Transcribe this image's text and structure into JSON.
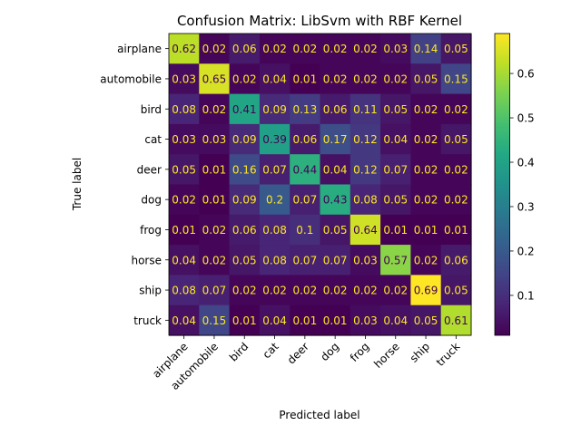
{
  "chart_data": {
    "type": "heatmap",
    "title": "Confusion Matrix: LibSvm with RBF Kernel",
    "xlabel": "Predicted label",
    "ylabel": "True label",
    "x_categories": [
      "airplane",
      "automobile",
      "bird",
      "cat",
      "deer",
      "dog",
      "frog",
      "horse",
      "ship",
      "truck"
    ],
    "y_categories": [
      "airplane",
      "automobile",
      "bird",
      "cat",
      "deer",
      "dog",
      "frog",
      "horse",
      "ship",
      "truck"
    ],
    "values": [
      [
        0.62,
        0.02,
        0.06,
        0.02,
        0.02,
        0.02,
        0.02,
        0.03,
        0.14,
        0.05
      ],
      [
        0.03,
        0.65,
        0.02,
        0.04,
        0.01,
        0.02,
        0.02,
        0.02,
        0.05,
        0.15
      ],
      [
        0.08,
        0.02,
        0.41,
        0.09,
        0.13,
        0.06,
        0.11,
        0.05,
        0.02,
        0.02
      ],
      [
        0.03,
        0.03,
        0.09,
        0.39,
        0.06,
        0.17,
        0.12,
        0.04,
        0.02,
        0.05
      ],
      [
        0.05,
        0.01,
        0.16,
        0.07,
        0.44,
        0.04,
        0.12,
        0.07,
        0.02,
        0.02
      ],
      [
        0.02,
        0.01,
        0.09,
        0.2,
        0.07,
        0.43,
        0.08,
        0.05,
        0.02,
        0.02
      ],
      [
        0.01,
        0.02,
        0.06,
        0.08,
        0.1,
        0.05,
        0.64,
        0.01,
        0.01,
        0.01
      ],
      [
        0.04,
        0.02,
        0.05,
        0.08,
        0.07,
        0.07,
        0.03,
        0.57,
        0.02,
        0.06
      ],
      [
        0.08,
        0.07,
        0.02,
        0.02,
        0.02,
        0.02,
        0.02,
        0.02,
        0.69,
        0.05
      ],
      [
        0.04,
        0.15,
        0.01,
        0.04,
        0.01,
        0.01,
        0.03,
        0.04,
        0.05,
        0.61
      ]
    ],
    "colormap": "viridis",
    "color_range": [
      0.01,
      0.69
    ],
    "colorbar_ticks": [
      "0.1",
      "0.2",
      "0.3",
      "0.4",
      "0.5",
      "0.6"
    ],
    "cell_text_colors": {
      "on_dark": "#fde725",
      "on_light": "#440154"
    },
    "x_tick_rotation_deg": 45,
    "grid": false,
    "colorbar": "right"
  }
}
